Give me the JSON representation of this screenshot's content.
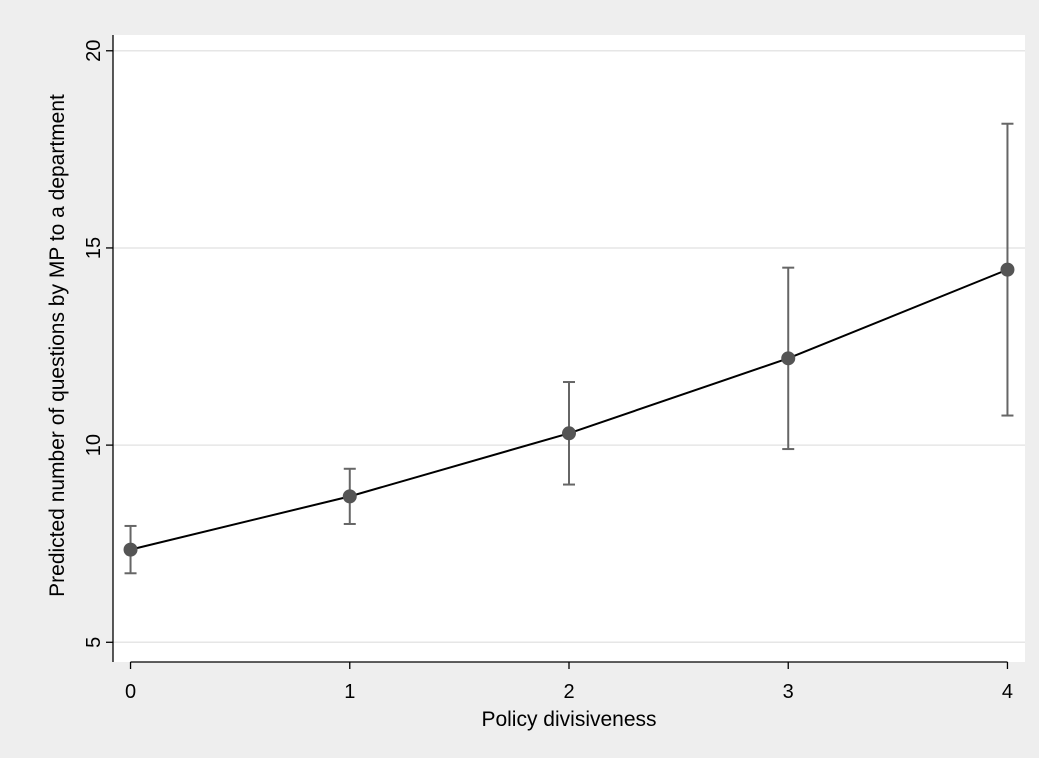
{
  "chart_data": {
    "type": "line",
    "title": "",
    "xlabel": "Policy divisiveness",
    "ylabel": "Predicted number of questions by MP to a department",
    "x": [
      0,
      1,
      2,
      3,
      4
    ],
    "xticks": [
      0,
      1,
      2,
      3,
      4
    ],
    "xlim": [
      -0.08,
      4.08
    ],
    "yticks": [
      5,
      10,
      15,
      20
    ],
    "ylim": [
      4.5,
      20.4
    ],
    "grid": true,
    "legend": "none",
    "series": [
      {
        "values": [
          7.35,
          8.7,
          10.3,
          12.2,
          14.45
        ],
        "ci_lower": [
          6.75,
          8.0,
          9.0,
          9.9,
          10.75
        ],
        "ci_upper": [
          7.95,
          9.4,
          11.6,
          14.5,
          18.15
        ]
      }
    ],
    "colors": {
      "outer_background": "#eeeeee",
      "plot_background": "#ffffff",
      "gridline": "#e6e6e6",
      "line": "#000000",
      "marker": "#555555",
      "error_bar": "#666666",
      "axis": "#000000"
    }
  }
}
